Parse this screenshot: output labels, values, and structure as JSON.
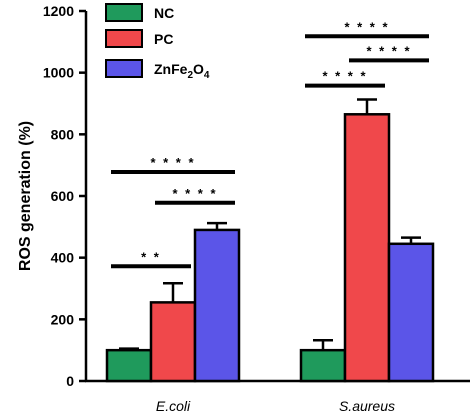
{
  "chart_data": {
    "type": "bar",
    "ylabel": "ROS generation (%)",
    "ylim": [
      0,
      1200
    ],
    "yticks": [
      0,
      200,
      400,
      600,
      800,
      1000,
      1200
    ],
    "categories": [
      "E.coli",
      "S.aureus"
    ],
    "series": [
      {
        "name": "NC",
        "values": [
          100,
          100
        ],
        "errors": [
          5,
          32
        ],
        "color": "#1f9a5c"
      },
      {
        "name": "PC",
        "values": [
          255,
          865
        ],
        "errors": [
          62,
          48
        ],
        "color": "#f0484b"
      },
      {
        "name": "ZnFe2O4",
        "values": [
          490,
          445
        ],
        "errors": [
          22,
          20
        ],
        "color": "#5b55e8"
      }
    ],
    "legend": {
      "placement": "top-left",
      "entries": [
        {
          "label": "NC",
          "sub": "",
          "tail": ""
        },
        {
          "label": "PC",
          "sub": "",
          "tail": ""
        },
        {
          "label": "ZnFe",
          "sub": "2",
          "tail": "O",
          "sub2": "4"
        }
      ]
    },
    "significance": [
      {
        "category": 0,
        "from": 1,
        "to": 2,
        "y": 578,
        "label": "* * * *"
      },
      {
        "category": 0,
        "from": 0,
        "to": 2,
        "y": 678,
        "label": "* * * *"
      },
      {
        "category": 0,
        "from": 0,
        "to": 1,
        "y": 372,
        "label": "* *"
      },
      {
        "category": 1,
        "from": 0,
        "to": 2,
        "y": 1118,
        "label": "* * * *"
      },
      {
        "category": 1,
        "from": 0,
        "to": 1,
        "y": 958,
        "label": "* * * *"
      },
      {
        "category": 1,
        "from": 1,
        "to": 2,
        "y": 1040,
        "label": "* * * *"
      }
    ]
  }
}
